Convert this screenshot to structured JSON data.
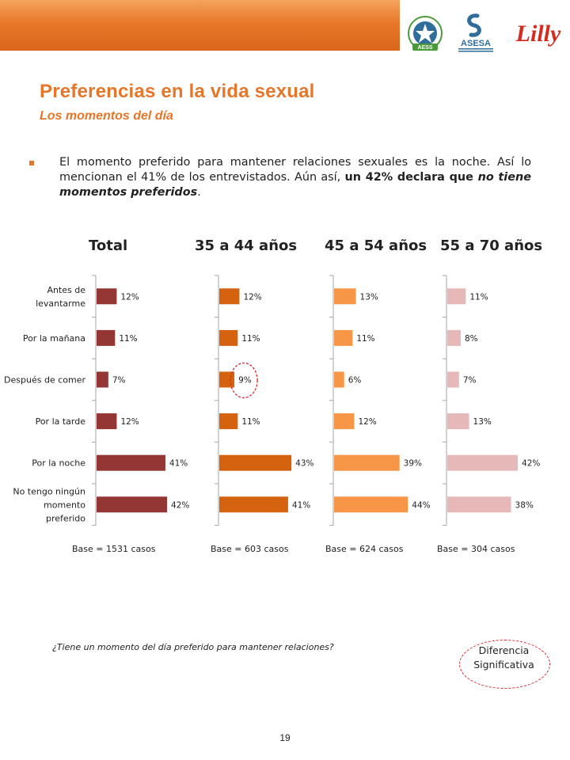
{
  "header": {
    "logo_aess_text": "AESS",
    "logo_asesa_text": "ASESA",
    "logo_lilly_text": "Lilly"
  },
  "title": "Preferencias en la vida sexual",
  "subtitle": "Los momentos del día",
  "bullet": {
    "text_1": "El momento preferido para mantener relaciones sexuales es la noche. Así lo mencionan el 41% de los entrevistados. Aún así, ",
    "bold_1": "un 42% declara que ",
    "bold_italic": "no tiene momentos preferidos",
    "text_2": "."
  },
  "question": "¿Tiene un momento del día preferido para mantener relaciones?",
  "significance_label": "Diferencia Significativa",
  "page_number": "19",
  "chart_data": {
    "type": "bar",
    "orientation": "horizontal",
    "categories": [
      "Antes de levantarme",
      "Por la mañana",
      "Después de comer",
      "Por la tarde",
      "Por la noche",
      "No tengo ningún momento preferido"
    ],
    "category_lines": [
      [
        "Antes de",
        "levantarme"
      ],
      [
        "Por la mañana"
      ],
      [
        "Después de comer"
      ],
      [
        "Por la tarde"
      ],
      [
        "Por la noche"
      ],
      [
        "No tengo ningún",
        "momento",
        "preferido"
      ]
    ],
    "series": [
      {
        "name": "Total",
        "values": [
          12,
          11,
          7,
          12,
          41,
          42
        ],
        "color": "#943634",
        "base": "Base = 1531 casos"
      },
      {
        "name": "35 a 44 años",
        "values": [
          12,
          11,
          9,
          11,
          43,
          41
        ],
        "color": "#d4620f",
        "base": "Base = 603 casos"
      },
      {
        "name": "45 a 54 años",
        "values": [
          13,
          11,
          6,
          12,
          39,
          44
        ],
        "color": "#f79646",
        "base": "Base = 624 casos"
      },
      {
        "name": "55 a 70 años",
        "values": [
          11,
          8,
          7,
          13,
          42,
          38
        ],
        "color": "#e6b9b8",
        "base": "Base = 304 casos"
      }
    ],
    "value_suffix": "%",
    "highlight": {
      "series": "35 a 44 años",
      "category": "Después de comer",
      "label": "Diferencia Significativa"
    }
  }
}
